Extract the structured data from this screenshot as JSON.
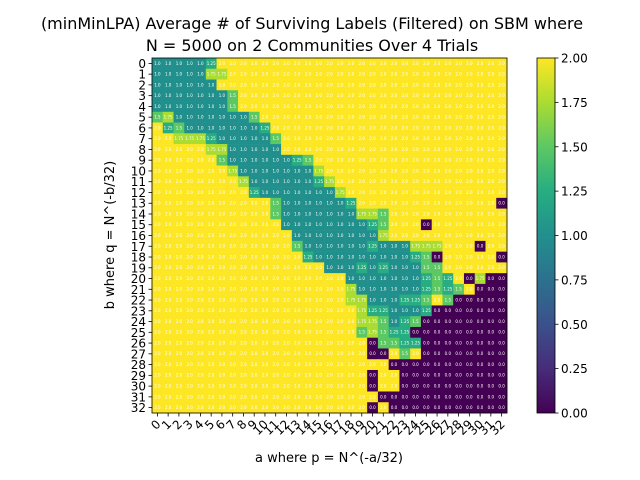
{
  "chart_data": {
    "type": "heatmap",
    "title_line1": "(minMinLPA) Average # of Surviving Labels (Filtered) on SBM where",
    "title_line2": "N = 5000 on 2 Communities Over 4 Trials",
    "xlabel": "a where p = N^(-a/32)",
    "ylabel": "b where q = N^(-b/32)",
    "x_ticks": [
      "0",
      "1",
      "2",
      "3",
      "4",
      "5",
      "6",
      "7",
      "8",
      "9",
      "10",
      "11",
      "12",
      "13",
      "14",
      "15",
      "16",
      "17",
      "18",
      "19",
      "20",
      "21",
      "22",
      "23",
      "24",
      "25",
      "26",
      "27",
      "28",
      "29",
      "30",
      "31",
      "32"
    ],
    "y_ticks": [
      "0",
      "1",
      "2",
      "3",
      "4",
      "5",
      "6",
      "7",
      "8",
      "9",
      "10",
      "11",
      "12",
      "13",
      "14",
      "15",
      "16",
      "17",
      "18",
      "19",
      "20",
      "21",
      "22",
      "23",
      "24",
      "25",
      "26",
      "27",
      "28",
      "29",
      "30",
      "31",
      "32"
    ],
    "colorbar": {
      "min": 0.0,
      "max": 2.0,
      "ticks": [
        "0.00",
        "0.25",
        "0.50",
        "0.75",
        "1.00",
        "1.25",
        "1.50",
        "1.75",
        "2.00"
      ],
      "colormap": "viridis"
    },
    "rows": [
      [
        1,
        1,
        1,
        1,
        1,
        1.25,
        2,
        2,
        2,
        2,
        2,
        2,
        2,
        2,
        2,
        2,
        2,
        2,
        2,
        2,
        2,
        2,
        2,
        2,
        2,
        2,
        2,
        2,
        2,
        2,
        2,
        2,
        2
      ],
      [
        1,
        1,
        1,
        1,
        1,
        1.75,
        1.75,
        2,
        2,
        2,
        2,
        2,
        2,
        2,
        2,
        2,
        2,
        2,
        2,
        2,
        2,
        2,
        2,
        2,
        2,
        2,
        2,
        2,
        2,
        2,
        2,
        2,
        2
      ],
      [
        1,
        1,
        1,
        1,
        1,
        1,
        2,
        2,
        2,
        2,
        2,
        2,
        2,
        2,
        2,
        2,
        2,
        2,
        2,
        2,
        2,
        2,
        2,
        2,
        2,
        2,
        2,
        2,
        2,
        2,
        2,
        2,
        2
      ],
      [
        1,
        1,
        1,
        1,
        1,
        1,
        1,
        1.5,
        2,
        2,
        2,
        2,
        2,
        2,
        2,
        2,
        2,
        2,
        2,
        2,
        2,
        2,
        2,
        2,
        2,
        2,
        2,
        2,
        2,
        2,
        2,
        2,
        2
      ],
      [
        1,
        1,
        1,
        1,
        1,
        1,
        1,
        1.5,
        2,
        2,
        2,
        2,
        2,
        2,
        2,
        2,
        2,
        2,
        2,
        2,
        2,
        2,
        2,
        2,
        2,
        2,
        2,
        2,
        2,
        2,
        2,
        2,
        2
      ],
      [
        1.5,
        1.75,
        1,
        1,
        1,
        1,
        1,
        1,
        1,
        1.5,
        2,
        2,
        2,
        2,
        2,
        2,
        2,
        2,
        2,
        2,
        2,
        2,
        2,
        2,
        2,
        2,
        2,
        2,
        2,
        2,
        2,
        2,
        2
      ],
      [
        2,
        1.25,
        1.5,
        1,
        1,
        1,
        1,
        1,
        1,
        1,
        1.25,
        2,
        2,
        2,
        2,
        2,
        2,
        2,
        2,
        2,
        2,
        2,
        2,
        2,
        2,
        2,
        2,
        2,
        2,
        2,
        2,
        2,
        2
      ],
      [
        2,
        2,
        1.75,
        1.75,
        1.75,
        1.25,
        1,
        1,
        1,
        1,
        1,
        1.5,
        2,
        2,
        2,
        2,
        2,
        2,
        2,
        2,
        2,
        2,
        2,
        2,
        2,
        2,
        2,
        2,
        2,
        2,
        2,
        2,
        2
      ],
      [
        2,
        2,
        2,
        2,
        2,
        1.75,
        1.75,
        1,
        1,
        1,
        1,
        1,
        2,
        2,
        2,
        2,
        2,
        2,
        2,
        2,
        2,
        2,
        2,
        2,
        2,
        2,
        2,
        2,
        2,
        2,
        2,
        2,
        2
      ],
      [
        2,
        2,
        2,
        2,
        2,
        2,
        1.5,
        1,
        1,
        1,
        1,
        1,
        1,
        1.25,
        1.5,
        2,
        2,
        2,
        2,
        2,
        2,
        2,
        2,
        2,
        2,
        2,
        2,
        2,
        2,
        2,
        2,
        2,
        2
      ],
      [
        2,
        2,
        2,
        2,
        2,
        2,
        2,
        1.75,
        1,
        1,
        1,
        1,
        1,
        1,
        1,
        1.75,
        2,
        2,
        2,
        2,
        2,
        2,
        2,
        2,
        2,
        2,
        2,
        2,
        2,
        2,
        2,
        2,
        2
      ],
      [
        2,
        2,
        2,
        2,
        2,
        2,
        2,
        2,
        1.75,
        1,
        1,
        1,
        1,
        1,
        1,
        1.25,
        1.75,
        2,
        2,
        2,
        2,
        2,
        2,
        2,
        2,
        2,
        2,
        2,
        2,
        2,
        2,
        2,
        2
      ],
      [
        2,
        2,
        2,
        2,
        2,
        2,
        2,
        2,
        2,
        1.25,
        1,
        1,
        1,
        1,
        1,
        1,
        1,
        1.75,
        2,
        2,
        2,
        2,
        2,
        2,
        2,
        2,
        2,
        2,
        2,
        2,
        2,
        2,
        2
      ],
      [
        2,
        2,
        2,
        2,
        2,
        2,
        2,
        2,
        2,
        2,
        2,
        1.5,
        1,
        1,
        1,
        1,
        1,
        1,
        1.25,
        2,
        2,
        2,
        2,
        2,
        2,
        2,
        2,
        2,
        2,
        2,
        2,
        2,
        0
      ],
      [
        2,
        2,
        2,
        2,
        2,
        2,
        2,
        2,
        2,
        2,
        2,
        1.5,
        1,
        1,
        1,
        1,
        1,
        1,
        1,
        1.75,
        1.75,
        1.5,
        2,
        2,
        2,
        2,
        2,
        2,
        2,
        2,
        2,
        2,
        2
      ],
      [
        2,
        2,
        2,
        2,
        2,
        2,
        2,
        2,
        2,
        2,
        2,
        2,
        1,
        1,
        1,
        1,
        1,
        1,
        1,
        1,
        1.25,
        1.5,
        2,
        2,
        2,
        0,
        2,
        2,
        2,
        2,
        2,
        2,
        2
      ],
      [
        2,
        2,
        2,
        2,
        2,
        2,
        2,
        2,
        2,
        2,
        2,
        2,
        2,
        1,
        1,
        1,
        1,
        1,
        1,
        1,
        1,
        1.75,
        2,
        2,
        2,
        2,
        2,
        2,
        2,
        2,
        2,
        2,
        2
      ],
      [
        2,
        2,
        2,
        2,
        2,
        2,
        2,
        2,
        2,
        2,
        2,
        2,
        2,
        1.5,
        1,
        1,
        1,
        1,
        1,
        1,
        1.25,
        1,
        1,
        1,
        1.75,
        1.75,
        1.75,
        2,
        2,
        2,
        0,
        2,
        2
      ],
      [
        2,
        2,
        2,
        2,
        2,
        2,
        2,
        2,
        2,
        2,
        2,
        2,
        2,
        2,
        1.25,
        1,
        1,
        1,
        1,
        1,
        1,
        1,
        1,
        1,
        1.25,
        1.5,
        0,
        2,
        2,
        2,
        2,
        2,
        0
      ],
      [
        2,
        2,
        2,
        2,
        2,
        2,
        2,
        2,
        2,
        2,
        2,
        2,
        2,
        2,
        2,
        2,
        1,
        1,
        1,
        1.25,
        1,
        1.25,
        1,
        1,
        1,
        1.5,
        1.5,
        2,
        2,
        2,
        2,
        2,
        2
      ],
      [
        2,
        2,
        2,
        2,
        2,
        2,
        2,
        2,
        2,
        2,
        2,
        2,
        2,
        2,
        2,
        2,
        2,
        2,
        1,
        1,
        1,
        1,
        1,
        1,
        1,
        1.25,
        1.5,
        1.25,
        2,
        0,
        1.75,
        0,
        0
      ],
      [
        2,
        2,
        2,
        2,
        2,
        2,
        2,
        2,
        2,
        2,
        2,
        2,
        2,
        2,
        2,
        2,
        2,
        2,
        1.75,
        1,
        1,
        1,
        1,
        1,
        1,
        1.25,
        1.5,
        1.25,
        1.5,
        2,
        0,
        0,
        0
      ],
      [
        2,
        2,
        2,
        2,
        2,
        2,
        2,
        2,
        2,
        2,
        2,
        2,
        2,
        2,
        2,
        2,
        2,
        2,
        1.75,
        1.75,
        1,
        1,
        1,
        1.25,
        1.25,
        1.5,
        2,
        1.5,
        0,
        0,
        0,
        0,
        0
      ],
      [
        2,
        2,
        2,
        2,
        2,
        2,
        2,
        2,
        2,
        2,
        2,
        2,
        2,
        2,
        2,
        2,
        2,
        2,
        2,
        1.75,
        1.25,
        1.25,
        1,
        1,
        1,
        1.25,
        0,
        0,
        0,
        0,
        0,
        0,
        0
      ],
      [
        2,
        2,
        2,
        2,
        2,
        2,
        2,
        2,
        2,
        2,
        2,
        2,
        2,
        2,
        2,
        2,
        2,
        2,
        2,
        1.75,
        1.75,
        1.5,
        1,
        1.25,
        1.5,
        0,
        0,
        0,
        0,
        0,
        0,
        0,
        0
      ],
      [
        2,
        2,
        2,
        2,
        2,
        2,
        2,
        2,
        2,
        2,
        2,
        2,
        2,
        2,
        2,
        2,
        2,
        2,
        2,
        1.5,
        1.75,
        1.5,
        1.25,
        1.25,
        0,
        0,
        0,
        0,
        0,
        0,
        0,
        0,
        0
      ],
      [
        2,
        2,
        2,
        2,
        2,
        2,
        2,
        2,
        2,
        2,
        2,
        2,
        2,
        2,
        2,
        2,
        2,
        2,
        2,
        2,
        0,
        1.5,
        1.5,
        1.25,
        1.25,
        0,
        0,
        0,
        0,
        0,
        0,
        0,
        0
      ],
      [
        2,
        2,
        2,
        2,
        2,
        2,
        2,
        2,
        2,
        2,
        2,
        2,
        2,
        2,
        2,
        2,
        2,
        2,
        2,
        2,
        0,
        0,
        2,
        1.5,
        2,
        0,
        0,
        0,
        0,
        0,
        0,
        0,
        0
      ],
      [
        2,
        2,
        2,
        2,
        2,
        2,
        2,
        2,
        2,
        2,
        2,
        2,
        2,
        2,
        2,
        2,
        2,
        2,
        2,
        2,
        2,
        2,
        0,
        0,
        0,
        0,
        0,
        0,
        0,
        0,
        0,
        0,
        0
      ],
      [
        2,
        2,
        2,
        2,
        2,
        2,
        2,
        2,
        2,
        2,
        2,
        2,
        2,
        2,
        2,
        2,
        2,
        2,
        2,
        2,
        0,
        2,
        2,
        0,
        0,
        0,
        0,
        0,
        0,
        0,
        0,
        0,
        0
      ],
      [
        2,
        2,
        2,
        2,
        2,
        2,
        2,
        2,
        2,
        2,
        2,
        2,
        2,
        2,
        2,
        2,
        2,
        2,
        2,
        2,
        0,
        2,
        2,
        0,
        0,
        0,
        0,
        0,
        0,
        0,
        0,
        0,
        0
      ],
      [
        2,
        2,
        2,
        2,
        2,
        2,
        2,
        2,
        2,
        2,
        2,
        2,
        2,
        2,
        2,
        2,
        2,
        2,
        2,
        2,
        2,
        0,
        0,
        0,
        0,
        0,
        0,
        0,
        0,
        0,
        0,
        0,
        0
      ],
      [
        2,
        2,
        2,
        2,
        2,
        2,
        2,
        2,
        2,
        2,
        2,
        2,
        2,
        2,
        2,
        2,
        2,
        2,
        2,
        2,
        0,
        2,
        0,
        0,
        0,
        0,
        0,
        0,
        0,
        0,
        0,
        0,
        0
      ]
    ]
  }
}
